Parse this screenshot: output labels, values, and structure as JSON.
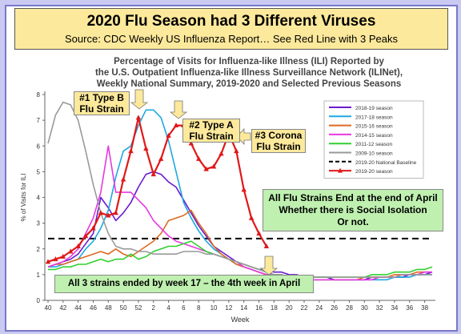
{
  "banner": {
    "title": "2020 Flu Season had 3 Different Viruses",
    "subtitle": "Source: CDC Weekly US Influenza Report… See Red Line with 3 Peaks"
  },
  "annotations": {
    "a1": [
      "#1 Type B",
      "Flu Strain"
    ],
    "a2": [
      "#2 Type A",
      "Flu Strain"
    ],
    "a3": [
      "#3 Corona",
      "Flu Strain"
    ],
    "end_box": [
      "All Flu Strains End at the end of April",
      "Whether there is Social Isolation",
      "Or not."
    ],
    "bottom_note": "All 3 strains ended by week 17 – the 4th week in April"
  },
  "chart_data": {
    "type": "line",
    "title": [
      "Percentage of Visits for Influenza-like Illness (ILI) Reported by",
      "the U.S. Outpatient Influenza-like Illness Surveillance Network (ILINet),",
      "Weekly National Summary, 2019-2020 and Selected Previous Seasons"
    ],
    "xlabel": "Week",
    "ylabel": "% of Visits for ILI",
    "ylim": [
      0,
      8
    ],
    "yticks": [
      0,
      1,
      2,
      3,
      4,
      5,
      6,
      7,
      8
    ],
    "xticks": [
      "40",
      "42",
      "44",
      "46",
      "48",
      "50",
      "52",
      "2",
      "4",
      "6",
      "8",
      "10",
      "12",
      "14",
      "16",
      "18",
      "20",
      "22",
      "24",
      "26",
      "28",
      "30",
      "32",
      "34",
      "36",
      "38"
    ],
    "grid": false,
    "legend_position": "top-right",
    "baseline": {
      "name": "2019-20 National Baseline",
      "value": 2.4,
      "color": "#000000"
    },
    "series": [
      {
        "name": "2018-19 season",
        "color": "#6a1bd0",
        "values": [
          1.3,
          1.4,
          1.5,
          1.6,
          1.8,
          2.2,
          2.6,
          4.0,
          3.6,
          3.1,
          3.4,
          3.8,
          4.4,
          4.9,
          5.0,
          4.9,
          4.6,
          4.4,
          3.9,
          3.4,
          2.9,
          2.5,
          2.1,
          1.9,
          1.7,
          1.5,
          1.4,
          1.3,
          1.2,
          1.2,
          1.1,
          1.1,
          1.0,
          1.0,
          0.9,
          0.9,
          0.9,
          0.9,
          0.8,
          0.8,
          0.8,
          0.8,
          0.8,
          0.9,
          0.9,
          0.9,
          0.9,
          0.9,
          1.0,
          1.0,
          1.0,
          1.1
        ]
      },
      {
        "name": "2017-18 season",
        "color": "#1ea8e0",
        "values": [
          1.3,
          1.3,
          1.4,
          1.5,
          1.6,
          2.0,
          2.3,
          2.8,
          3.5,
          4.8,
          5.8,
          6.0,
          6.8,
          7.4,
          7.4,
          7.1,
          6.2,
          5.0,
          3.8,
          3.2,
          2.7,
          2.3,
          2.0,
          1.8,
          1.6,
          1.4,
          1.3,
          1.2,
          1.1,
          1.0,
          1.0,
          0.9,
          0.9,
          0.8,
          0.8,
          0.8,
          0.8,
          0.8,
          0.8,
          0.8,
          0.8,
          0.8,
          0.8,
          0.8,
          0.8,
          0.8,
          0.9,
          0.9,
          0.9,
          1.0,
          1.0,
          1.0
        ]
      },
      {
        "name": "2015-16 season",
        "color": "#e06820",
        "values": [
          1.3,
          1.4,
          1.4,
          1.5,
          1.6,
          1.7,
          1.8,
          1.9,
          1.8,
          2.0,
          1.8,
          1.7,
          1.9,
          2.1,
          2.3,
          2.6,
          3.1,
          3.2,
          3.3,
          3.5,
          3.0,
          2.6,
          2.1,
          1.8,
          1.6,
          1.4,
          1.3,
          1.2,
          1.1,
          1.0,
          1.0,
          0.9,
          0.9,
          0.9,
          0.8,
          0.8,
          0.8,
          0.8,
          0.8,
          0.8,
          0.8,
          0.8,
          0.9,
          0.9,
          0.9,
          0.9,
          1.0,
          1.0,
          1.0,
          1.1,
          1.1,
          1.1
        ]
      },
      {
        "name": "2014-15 season",
        "color": "#e838e0",
        "values": [
          1.3,
          1.4,
          1.5,
          1.7,
          2.0,
          2.6,
          3.2,
          4.2,
          6.0,
          4.2,
          4.2,
          4.2,
          3.9,
          3.6,
          3.1,
          2.8,
          2.5,
          2.3,
          2.2,
          2.1,
          2.0,
          1.9,
          1.8,
          1.7,
          1.6,
          1.5,
          1.3,
          1.2,
          1.1,
          1.0,
          1.0,
          0.9,
          0.9,
          0.9,
          0.8,
          0.8,
          0.8,
          0.8,
          0.8,
          0.8,
          0.8,
          0.8,
          0.8,
          0.8,
          0.9,
          0.9,
          0.9,
          1.0,
          1.0,
          1.0,
          1.1,
          1.1
        ]
      },
      {
        "name": "2011-12 season",
        "color": "#30d030",
        "values": [
          1.2,
          1.2,
          1.3,
          1.3,
          1.4,
          1.4,
          1.5,
          1.6,
          1.5,
          1.6,
          1.6,
          1.8,
          1.6,
          1.7,
          1.9,
          2.0,
          2.1,
          2.1,
          2.2,
          2.3,
          2.1,
          1.9,
          1.8,
          1.7,
          1.6,
          1.5,
          1.4,
          1.3,
          1.2,
          1.1,
          1.0,
          1.0,
          0.9,
          0.9,
          0.9,
          0.9,
          0.9,
          0.9,
          0.9,
          0.9,
          0.9,
          0.9,
          0.9,
          1.0,
          1.0,
          1.0,
          1.1,
          1.1,
          1.1,
          1.2,
          1.2,
          1.3
        ]
      },
      {
        "name": "2009-10 season",
        "color": "#9a9a9a",
        "values": [
          6.1,
          7.2,
          7.7,
          7.6,
          7.0,
          5.8,
          4.5,
          3.4,
          2.6,
          2.1,
          2.0,
          2.0,
          1.9,
          1.9,
          1.8,
          1.8,
          1.8,
          1.8,
          1.9,
          1.9,
          1.9,
          1.8,
          1.8,
          1.7,
          1.6,
          1.5,
          1.4,
          1.3,
          1.2,
          1.1,
          1.0,
          1.0,
          0.9,
          0.9,
          0.9,
          0.9,
          0.9,
          0.9,
          0.9,
          0.9,
          0.9,
          0.9,
          0.9,
          0.9,
          0.9,
          0.9,
          0.9,
          1.0,
          1.0,
          1.0,
          1.0,
          1.0
        ]
      },
      {
        "name": "2019-20 season",
        "color": "#e01818",
        "marker": "triangle",
        "values": [
          1.5,
          1.6,
          1.7,
          1.9,
          2.1,
          2.5,
          2.8,
          3.4,
          3.3,
          3.4,
          4.7,
          5.8,
          7.1,
          5.9,
          4.9,
          5.5,
          6.4,
          6.8,
          6.8,
          6.1,
          5.5,
          5.1,
          5.2,
          5.7,
          6.5,
          5.8,
          4.3,
          3.2,
          2.6,
          2.1
        ]
      }
    ]
  }
}
